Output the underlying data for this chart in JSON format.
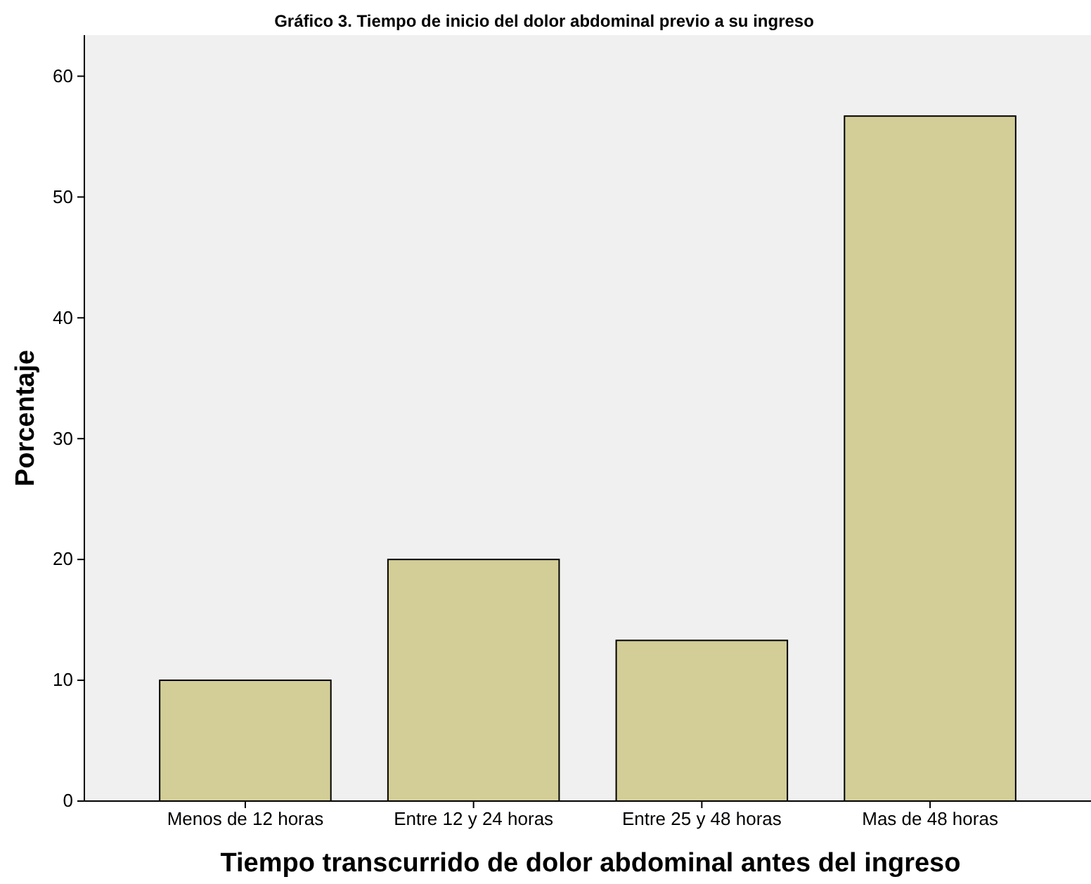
{
  "chart_data": {
    "type": "bar",
    "title": "Gráfico 3. Tiempo de inicio del dolor abdominal previo a su ingreso",
    "xlabel": "Tiempo transcurrido de dolor abdominal antes del ingreso",
    "ylabel": "Porcentaje",
    "categories": [
      "Menos de 12 horas",
      "Entre 12 y 24 horas",
      "Entre 25 y 48 horas",
      "Mas de 48 horas"
    ],
    "values": [
      10,
      20,
      13.3,
      56.7
    ],
    "color": "#d3ce97",
    "ylim": [
      0,
      63.4
    ],
    "yticks": [
      0,
      10,
      20,
      30,
      40,
      50,
      60
    ]
  }
}
